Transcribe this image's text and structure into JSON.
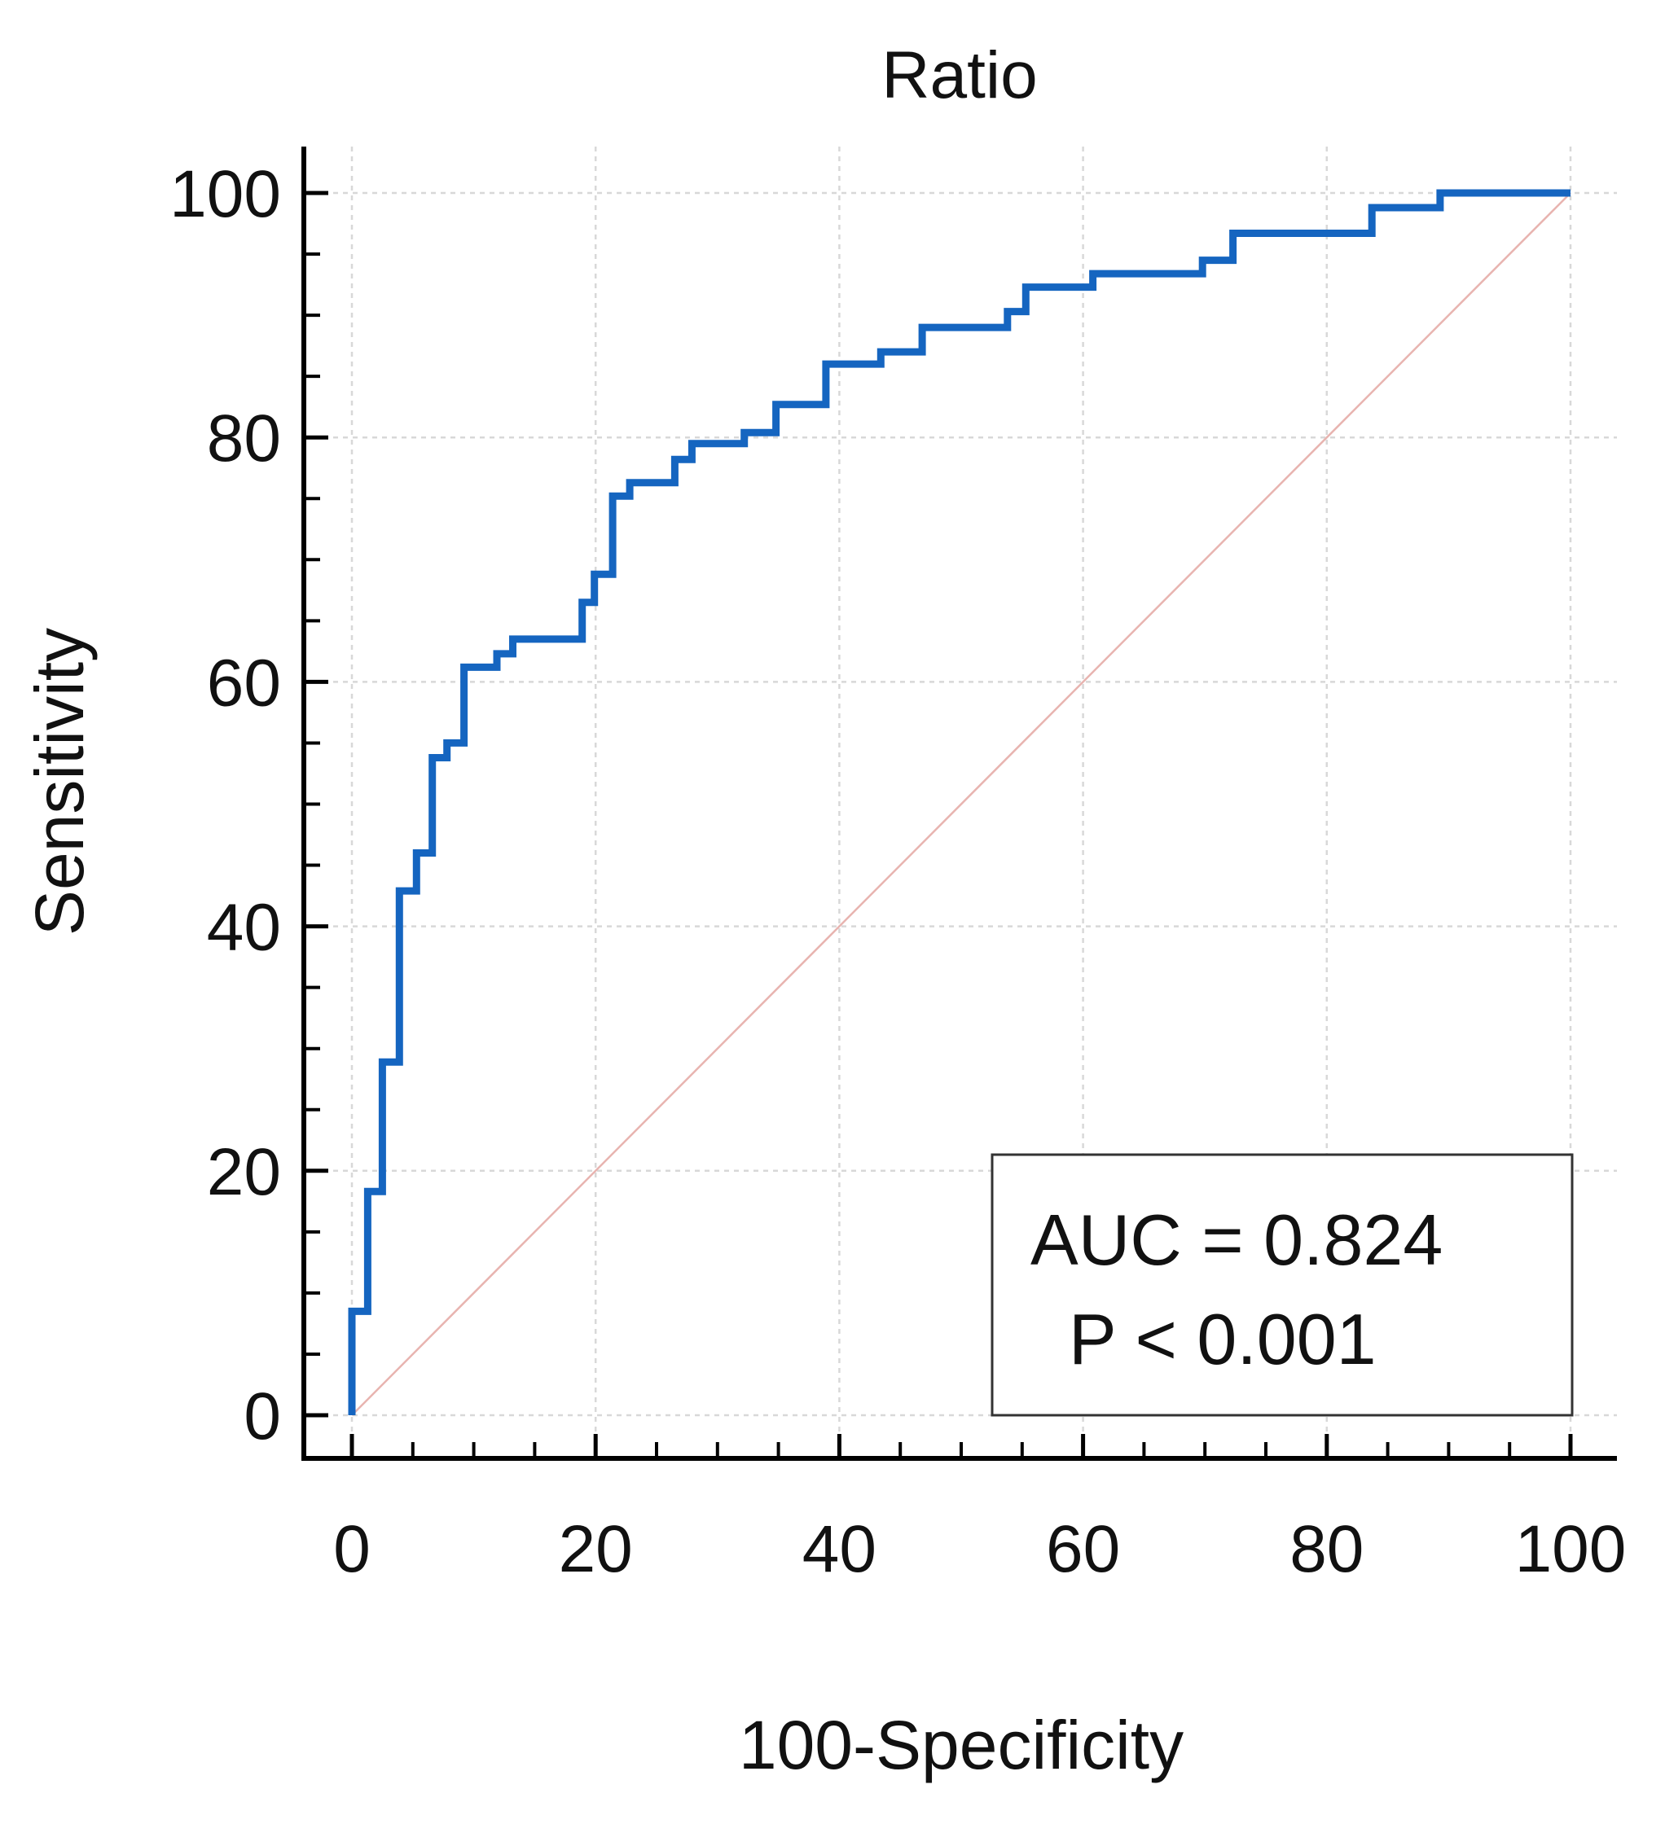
{
  "chart_data": {
    "type": "line",
    "title": "Ratio",
    "xlabel": "100-Specificity",
    "ylabel": "Sensitivity",
    "xlim": [
      0,
      100
    ],
    "ylim": [
      0,
      100
    ],
    "x_ticks": [
      "0",
      "20",
      "40",
      "60",
      "80",
      "100"
    ],
    "y_ticks": [
      "0",
      "20",
      "40",
      "60",
      "80",
      "100"
    ],
    "grid": true,
    "annotation": {
      "auc_label": "AUC = 0.824",
      "p_label": "P < 0.001",
      "placement": "bottom-right"
    },
    "series": [
      {
        "name": "ROC curve",
        "color": "#1565c0",
        "points": [
          [
            0,
            0
          ],
          [
            0,
            8.5
          ],
          [
            1.3,
            8.5
          ],
          [
            1.3,
            18.3
          ],
          [
            2.5,
            18.3
          ],
          [
            2.5,
            28.9
          ],
          [
            3.9,
            28.9
          ],
          [
            3.9,
            42.9
          ],
          [
            5.3,
            42.9
          ],
          [
            5.3,
            46
          ],
          [
            6.6,
            46
          ],
          [
            6.6,
            53.8
          ],
          [
            7.8,
            53.8
          ],
          [
            7.8,
            55
          ],
          [
            9.2,
            55
          ],
          [
            9.2,
            61.2
          ],
          [
            11.9,
            61.2
          ],
          [
            11.9,
            62.3
          ],
          [
            13.2,
            62.3
          ],
          [
            13.2,
            63.5
          ],
          [
            18.9,
            63.5
          ],
          [
            18.9,
            66.5
          ],
          [
            19.9,
            66.5
          ],
          [
            19.9,
            68.8
          ],
          [
            21.4,
            68.8
          ],
          [
            21.4,
            75.2
          ],
          [
            22.8,
            75.2
          ],
          [
            22.8,
            76.3
          ],
          [
            26.5,
            76.3
          ],
          [
            26.5,
            78.2
          ],
          [
            27.9,
            78.2
          ],
          [
            27.9,
            79.5
          ],
          [
            32.2,
            79.5
          ],
          [
            32.2,
            80.4
          ],
          [
            34.8,
            80.4
          ],
          [
            34.8,
            82.7
          ],
          [
            38.9,
            82.7
          ],
          [
            38.9,
            86
          ],
          [
            43.4,
            86
          ],
          [
            43.4,
            87
          ],
          [
            46.8,
            87
          ],
          [
            46.8,
            89
          ],
          [
            53.8,
            89
          ],
          [
            53.8,
            90.3
          ],
          [
            55.3,
            90.3
          ],
          [
            55.3,
            92.3
          ],
          [
            60.8,
            92.3
          ],
          [
            60.8,
            93.4
          ],
          [
            69.8,
            93.4
          ],
          [
            69.8,
            94.5
          ],
          [
            72.3,
            94.5
          ],
          [
            72.3,
            96.7
          ],
          [
            83.7,
            96.7
          ],
          [
            83.7,
            98.8
          ],
          [
            89.3,
            98.8
          ],
          [
            89.3,
            100
          ],
          [
            100,
            100
          ]
        ]
      },
      {
        "name": "Reference line",
        "color": "#e8b4b0",
        "points": [
          [
            0,
            0
          ],
          [
            100,
            100
          ]
        ]
      }
    ]
  }
}
